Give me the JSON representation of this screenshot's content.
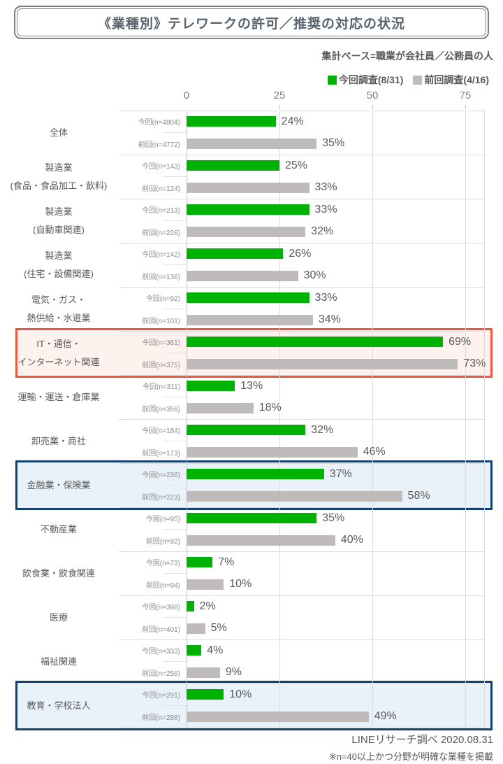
{
  "title": "《業種別》テレワークの許可／推奨の対応の状況",
  "subtitle": "集計ベース=職業が会社員／公務員の人",
  "legend": {
    "current": "今回調査(8/31)",
    "previous": "前回調査(4/16)"
  },
  "footer": {
    "source": "LINEリサーチ調べ 2020.08.31",
    "note": "※n=40以上かつ分野が明確な業種を掲載"
  },
  "colors": {
    "current_bar": "#00b204",
    "previous_bar": "#bfbbbb",
    "red_box_border": "#f2573d",
    "red_box_fill": "#fdf2ee",
    "blue_box_border": "#16406e",
    "blue_box_fill": "#eaf2f9"
  },
  "chart_data": {
    "type": "bar",
    "orientation": "horizontal",
    "unit": "%",
    "axis_ticks": [
      0,
      25,
      50,
      75
    ],
    "xlim": [
      0,
      82
    ],
    "grid": true,
    "legend_position": "top-right",
    "series_names": [
      "今回調査(8/31)",
      "前回調査(4/16)"
    ],
    "rows": [
      {
        "category": [
          "全体"
        ],
        "current_label": "今回(n=4804)",
        "current_value": 24,
        "previous_label": "前回(n=4772)",
        "previous_value": 35,
        "highlight": null
      },
      {
        "category": [
          "製造業",
          "(食品・食品加工・飲料)"
        ],
        "current_label": "今回(n=143)",
        "current_value": 25,
        "previous_label": "前回(n=124)",
        "previous_value": 33,
        "highlight": null
      },
      {
        "category": [
          "製造業",
          "(自動車関連)"
        ],
        "current_label": "今回(n=213)",
        "current_value": 33,
        "previous_label": "前回(n=226)",
        "previous_value": 32,
        "highlight": null
      },
      {
        "category": [
          "製造業",
          "(住宅・設備関連)"
        ],
        "current_label": "今回(n=142)",
        "current_value": 26,
        "previous_label": "前回(n=136)",
        "previous_value": 30,
        "highlight": null
      },
      {
        "category": [
          "電気・ガス・",
          "熱供給・水道業"
        ],
        "current_label": "今回(n=92)",
        "current_value": 33,
        "previous_label": "前回(n=101)",
        "previous_value": 34,
        "highlight": null
      },
      {
        "category": [
          "IT・通信・",
          "インターネット関連"
        ],
        "current_label": "今回(n=361)",
        "current_value": 69,
        "previous_label": "前回(n=375)",
        "previous_value": 73,
        "highlight": "red"
      },
      {
        "category": [
          "運輸・運送・倉庫業"
        ],
        "current_label": "今回(n=311)",
        "current_value": 13,
        "previous_label": "前回(n=356)",
        "previous_value": 18,
        "highlight": null
      },
      {
        "category": [
          "卸売業・商社"
        ],
        "current_label": "今回(n=184)",
        "current_value": 32,
        "previous_label": "前回(n=173)",
        "previous_value": 46,
        "highlight": null
      },
      {
        "category": [
          "金融業・保険業"
        ],
        "current_label": "今回(n=236)",
        "current_value": 37,
        "previous_label": "前回(n=223)",
        "previous_value": 58,
        "highlight": "blue"
      },
      {
        "category": [
          "不動産業"
        ],
        "current_label": "今回(n=95)",
        "current_value": 35,
        "previous_label": "前回(n=92)",
        "previous_value": 40,
        "highlight": null
      },
      {
        "category": [
          "飲食業・飲食関連"
        ],
        "current_label": "今回(n=73)",
        "current_value": 7,
        "previous_label": "前回(n=94)",
        "previous_value": 10,
        "highlight": null
      },
      {
        "category": [
          "医療"
        ],
        "current_label": "今回(n=398)",
        "current_value": 2,
        "previous_label": "前回(n=401)",
        "previous_value": 5,
        "highlight": null
      },
      {
        "category": [
          "福祉関連"
        ],
        "current_label": "今回(n=333)",
        "current_value": 4,
        "previous_label": "前回(n=256)",
        "previous_value": 9,
        "highlight": null
      },
      {
        "category": [
          "教育・学校法人"
        ],
        "current_label": "今回(n=291)",
        "current_value": 10,
        "previous_label": "前回(n=288)",
        "previous_value": 49,
        "highlight": "blue"
      }
    ]
  }
}
